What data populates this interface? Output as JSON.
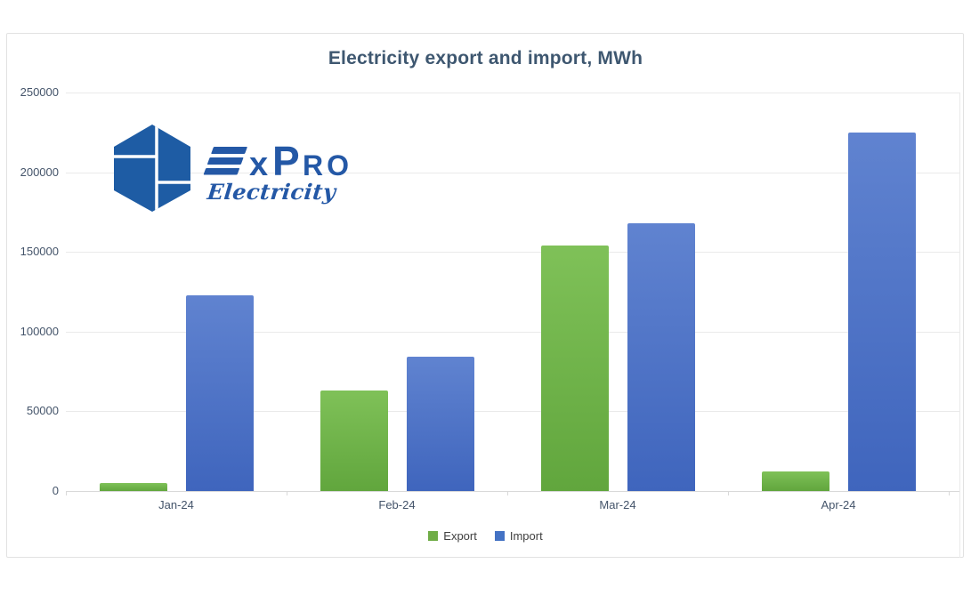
{
  "chart": {
    "title": "Electricity export and import, MWh"
  },
  "logo": {
    "brand_x": "x",
    "brand_p": "P",
    "brand_ro": "RO",
    "subtitle": "Electricity",
    "hexagon_color": "#1E5CA4",
    "text_color": "#2458A6"
  },
  "colors": {
    "title_text": "#3E5770",
    "axis_text": "#44546A",
    "legend_text": "#3F3F3F",
    "gridline": "#EAEAEA",
    "axis_line": "#D9D9D9",
    "card_border": "#E2E2E2",
    "export_top": "#7FC158",
    "export_bottom": "#61A63D",
    "import_top": "#6083D0",
    "import_bottom": "#3F65BD"
  },
  "chart_data": {
    "type": "bar",
    "title": "Electricity export and import, MWh",
    "categories": [
      "Jan-24",
      "Feb-24",
      "Mar-24",
      "Apr-24"
    ],
    "series": [
      {
        "name": "Export",
        "color": "#70AD47",
        "values": [
          5000,
          63000,
          154000,
          12000
        ]
      },
      {
        "name": "Import",
        "color": "#4472C4",
        "values": [
          123000,
          84000,
          168000,
          225000
        ]
      }
    ],
    "xlabel": "",
    "ylabel": "",
    "unit": "MWh",
    "ylim": [
      0,
      250000
    ],
    "yticks": [
      0,
      50000,
      100000,
      150000,
      200000,
      250000
    ],
    "ytick_labels": [
      "0",
      "50000",
      "100000",
      "150000",
      "200000",
      "250000"
    ],
    "grid": true,
    "legend_position": "bottom"
  }
}
